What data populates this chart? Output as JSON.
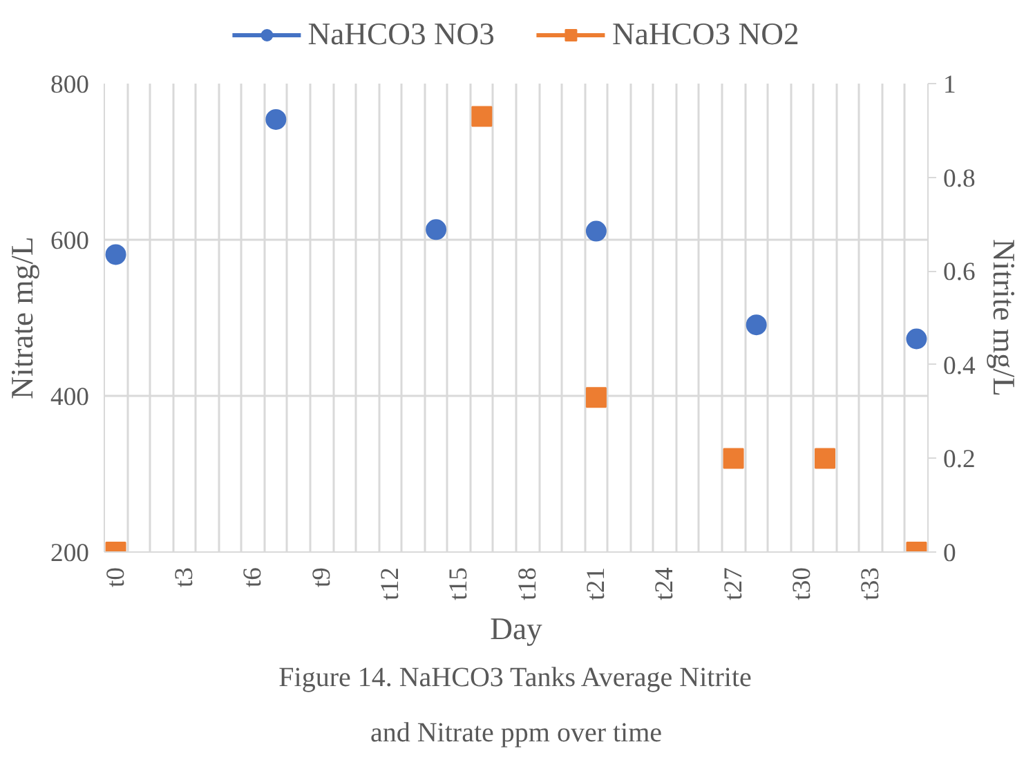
{
  "chart_data": {
    "type": "scatter",
    "title": "Figure 14. NaHCO3 Tanks Average Nitrite\nand Nitrate ppm over time",
    "xlabel": "Day",
    "ylabel": "Nitrate mg/L",
    "y2label": "Nitrite mg/L",
    "categories": [
      "t0",
      null,
      null,
      "t3",
      null,
      null,
      "t6",
      null,
      null,
      "t9",
      null,
      null,
      "t12",
      null,
      null,
      "t15",
      null,
      null,
      "t18",
      null,
      null,
      "t21",
      null,
      null,
      "t24",
      null,
      null,
      "t27",
      null,
      null,
      "t30",
      null,
      null,
      "t33",
      null,
      null
    ],
    "series": [
      {
        "name": "NaHCO3 NO3",
        "color": "#4472c4",
        "marker": "circle",
        "values": [
          581,
          null,
          null,
          null,
          null,
          null,
          null,
          754,
          null,
          null,
          null,
          null,
          null,
          null,
          613,
          null,
          null,
          null,
          null,
          null,
          null,
          611,
          null,
          null,
          null,
          null,
          null,
          null,
          491,
          null,
          null,
          null,
          null,
          null,
          null,
          473
        ]
      },
      {
        "name": "NaHCO3 NO2",
        "color": "#ed7d31",
        "marker": "square",
        "axis": "y2",
        "values": [
          0,
          null,
          null,
          null,
          null,
          null,
          null,
          null,
          null,
          null,
          null,
          null,
          null,
          null,
          null,
          null,
          0.93,
          null,
          null,
          null,
          null,
          0.33,
          null,
          null,
          null,
          null,
          null,
          0.2,
          null,
          null,
          null,
          0.2,
          null,
          null,
          null,
          0
        ]
      }
    ],
    "ylim": [
      200,
      800
    ],
    "yticks": [
      200,
      400,
      600,
      800
    ],
    "y2lim": [
      0,
      1
    ],
    "y2ticks": [
      0,
      {
        "value": 0.2,
        "label": "0.2"
      },
      {
        "value": 0.4,
        "label": "0.4"
      },
      {
        "value": 0.6,
        "label": "0.6"
      },
      {
        "value": 0.8,
        "label": "0.8"
      },
      1
    ],
    "grid": true,
    "legend": "top"
  }
}
